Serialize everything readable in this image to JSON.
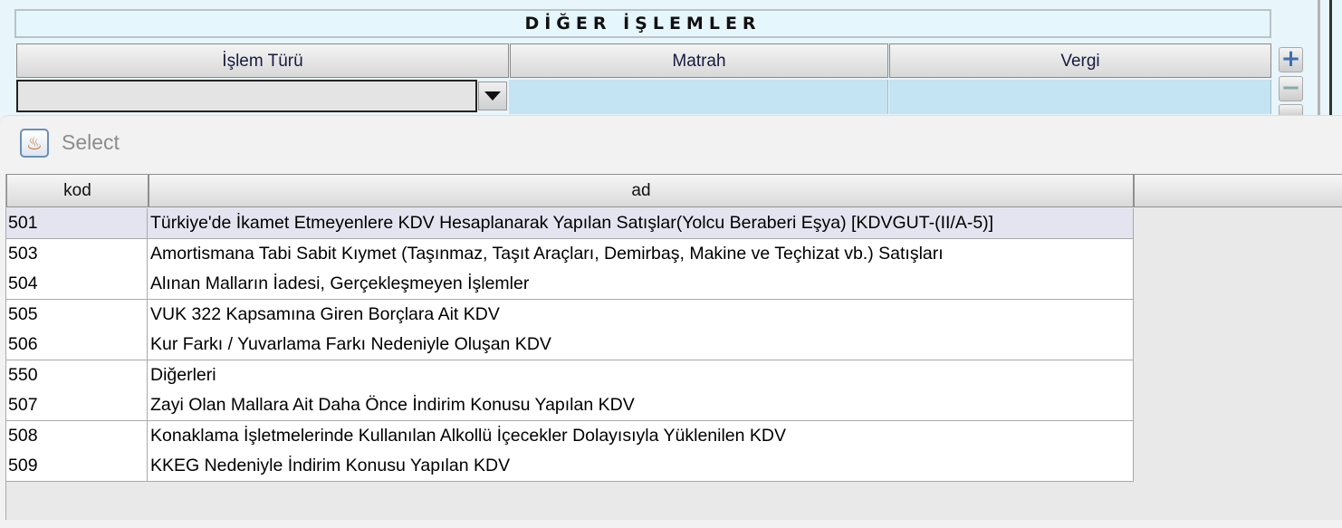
{
  "panel": {
    "title": "DİĞER İŞLEMLER",
    "columns": [
      "İşlem Türü",
      "Matrah",
      "Vergi"
    ],
    "add_icon": "plus-icon",
    "remove_icon": "minus-icon"
  },
  "popup": {
    "toolbar": {
      "icon": "java-cup-icon",
      "select_label": "Select"
    },
    "table": {
      "columns": [
        "kod",
        "ad"
      ],
      "rows": [
        {
          "kod": "501",
          "ad": "Türkiye'de İkamet Etmeyenlere KDV Hesaplanarak Yapılan Satışlar(Yolcu Beraberi Eşya) [KDVGUT-(II/A-5)]"
        },
        {
          "kod": "503",
          "ad": "Amortismana Tabi Sabit Kıymet (Taşınmaz, Taşıt Araçları, Demirbaş, Makine ve Teçhizat vb.) Satışları"
        },
        {
          "kod": "504",
          "ad": "Alınan Malların İadesi, Gerçekleşmeyen İşlemler"
        },
        {
          "kod": "505",
          "ad": "VUK 322 Kapsamına Giren Borçlara Ait KDV"
        },
        {
          "kod": "506",
          "ad": "Kur Farkı / Yuvarlama Farkı Nedeniyle Oluşan KDV"
        },
        {
          "kod": "550",
          "ad": "Diğerleri"
        },
        {
          "kod": "507",
          "ad": "Zayi Olan Mallara Ait Daha Önce İndirim Konusu Yapılan KDV"
        },
        {
          "kod": "508",
          "ad": "Konaklama İşletmelerinde Kullanılan Alkollü İçecekler Dolayısıyla Yüklenilen KDV"
        },
        {
          "kod": "509",
          "ad": "KKEG Nedeniyle İndirim Konusu Yapılan KDV"
        }
      ]
    }
  }
}
